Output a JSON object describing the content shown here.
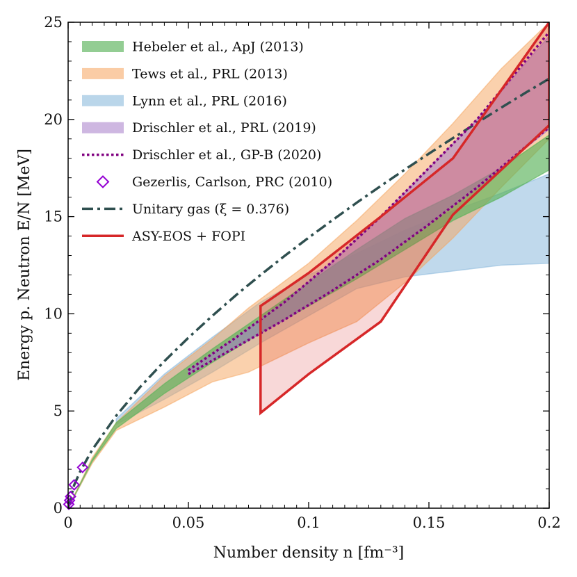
{
  "chart_data": {
    "type": "area",
    "xlabel": "Number density n [fm⁻³]",
    "ylabel": "Energy p. Neutron E/N [MeV]",
    "xlim": [
      0,
      0.2
    ],
    "ylim": [
      0,
      25
    ],
    "x_ticks": [
      "0",
      "0.05",
      "0.1",
      "0.15",
      "0.2"
    ],
    "y_ticks": [
      "0",
      "5",
      "10",
      "15",
      "20",
      "25"
    ],
    "grid": false,
    "legend_position": "top-left",
    "series": [
      {
        "name": "Hebeler et al., ApJ (2013)",
        "kind": "band",
        "color": "#59b259",
        "x": [
          0.0,
          0.01,
          0.02,
          0.04,
          0.06,
          0.08,
          0.1,
          0.12,
          0.14,
          0.16,
          0.18,
          0.2
        ],
        "lower": [
          0.0,
          2.4,
          4.1,
          5.9,
          7.5,
          9.0,
          10.4,
          11.8,
          13.3,
          14.8,
          16.0,
          17.4
        ],
        "upper": [
          0.0,
          2.5,
          4.4,
          6.4,
          8.2,
          9.9,
          11.6,
          13.3,
          14.9,
          16.1,
          17.5,
          19.2
        ]
      },
      {
        "name": "Tews et al., PRL (2013)",
        "kind": "band",
        "color": "#f5a35b",
        "x": [
          0.0,
          0.01,
          0.02,
          0.04,
          0.06,
          0.075,
          0.1,
          0.12,
          0.14,
          0.16,
          0.18,
          0.2
        ],
        "lower": [
          0.0,
          2.3,
          4.0,
          5.2,
          6.5,
          7.0,
          8.5,
          9.6,
          11.6,
          13.9,
          16.5,
          19.0
        ],
        "upper": [
          0.0,
          2.6,
          4.4,
          6.8,
          8.7,
          10.3,
          12.6,
          14.8,
          17.2,
          19.8,
          22.6,
          25.0
        ]
      },
      {
        "name": "Lynn et al., PRL (2016)",
        "kind": "band",
        "color": "#82b4d9",
        "x": [
          0.02,
          0.04,
          0.06,
          0.08,
          0.1,
          0.12,
          0.14,
          0.16,
          0.18,
          0.2
        ],
        "lower": [
          4.3,
          5.6,
          7.0,
          8.5,
          9.9,
          11.3,
          11.9,
          12.2,
          12.5,
          12.6
        ],
        "upper": [
          4.6,
          6.9,
          8.8,
          10.6,
          12.0,
          13.1,
          14.3,
          15.3,
          16.2,
          17.2
        ]
      },
      {
        "name": "Drischler et al., PRL (2019)",
        "kind": "band",
        "color": "#a57bc9",
        "x": [
          0.05,
          0.07,
          0.09,
          0.11,
          0.13,
          0.15,
          0.17,
          0.2
        ],
        "lower": [
          6.9,
          8.3,
          9.7,
          11.2,
          12.8,
          14.6,
          16.5,
          19.5
        ],
        "upper": [
          7.1,
          8.8,
          10.6,
          12.7,
          15.0,
          17.5,
          20.0,
          24.3
        ]
      },
      {
        "name": "Drischler et al., GP-B (2020)",
        "kind": "dotted-band-edges",
        "color": "#800080",
        "x": [
          0.05,
          0.07,
          0.09,
          0.11,
          0.13,
          0.15,
          0.17,
          0.2
        ],
        "lower": [
          6.9,
          8.3,
          9.7,
          11.2,
          12.8,
          14.6,
          16.5,
          19.6
        ],
        "upper": [
          7.1,
          8.8,
          10.6,
          12.7,
          15.0,
          17.5,
          20.0,
          24.5
        ]
      },
      {
        "name": "Gezerlis, Carlson, PRC (2010)",
        "kind": "markers",
        "color": "#9400d3",
        "x": [
          0.0003,
          0.0006,
          0.001,
          0.0025,
          0.006
        ],
        "y": [
          0.2,
          0.4,
          0.6,
          1.2,
          2.1
        ]
      },
      {
        "name": "Unitary gas (ξ = 0.376)",
        "kind": "dash-dot-line",
        "color": "#2f4f4f",
        "x": [
          0.0,
          0.0025,
          0.005,
          0.01,
          0.02,
          0.03,
          0.04,
          0.05,
          0.06,
          0.07,
          0.08,
          0.09,
          0.1,
          0.11,
          0.12,
          0.13,
          0.14,
          0.15,
          0.16,
          0.17,
          0.18,
          0.19,
          0.2
        ],
        "y": [
          0.0,
          1.19,
          1.89,
          3.0,
          4.76,
          6.24,
          7.56,
          8.77,
          9.9,
          10.98,
          12.0,
          12.98,
          13.92,
          14.83,
          15.72,
          16.58,
          17.42,
          18.24,
          19.04,
          19.83,
          20.6,
          21.36,
          22.1
        ]
      },
      {
        "name": "ASY-EOS + FOPI",
        "kind": "region",
        "color": "#d62728",
        "x": [
          0.08,
          0.08,
          0.1,
          0.13,
          0.16,
          0.2,
          0.2,
          0.16,
          0.13,
          0.1,
          0.08
        ],
        "y": [
          4.9,
          10.4,
          12.1,
          15.0,
          18.0,
          25.0,
          19.7,
          15.1,
          9.6,
          6.9,
          4.9
        ]
      }
    ]
  }
}
